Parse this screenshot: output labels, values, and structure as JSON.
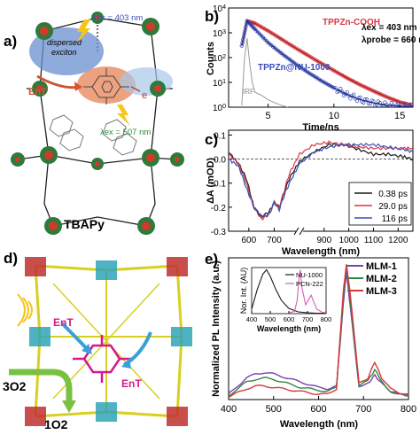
{
  "panels": {
    "a": {
      "label": "a)",
      "dispersed_exciton": [
        "dispersed",
        "exciton"
      ],
      "lambda_ex_403": "λex = 403 nm",
      "lambda_ex_507": "λex = 507 nm",
      "ent": "EnT",
      "electron": "e",
      "linker": "TBAPy"
    },
    "b": {
      "label": "b)",
      "ylabel": "Counts",
      "xlabel": "Time/ns",
      "series_labels": [
        "TPPZn-COOH",
        "TPPZn@NU-1000",
        "IRF"
      ],
      "lambda_ex": "λex = 403 nm",
      "lambda_probe": "λprobe = 660 nm",
      "yticks": [
        "10^0",
        "10^1",
        "10^2",
        "10^3",
        "10^4"
      ],
      "xticks": [
        "5",
        "10",
        "15"
      ],
      "colors": {
        "cooh": "#d9363e",
        "nu": "#3b4fb8",
        "irf": "#9a9a9a"
      }
    },
    "c": {
      "label": "c)",
      "ylabel": "ΔA (mOD)",
      "xlabel": "Wavelength (nm)",
      "yticks": [
        "0.1",
        "0.0",
        "-0.1",
        "-0.2",
        "-0.3"
      ],
      "xticks": [
        "600",
        "700",
        "900",
        "1000",
        "1100",
        "1200"
      ],
      "legend": [
        {
          "label": "0.38 ps",
          "color": "#1a1a1a"
        },
        {
          "label": "29.0 ps",
          "color": "#d9363e"
        },
        {
          "label": "116 ps",
          "color": "#3b4fb8"
        }
      ]
    },
    "d": {
      "label": "d)",
      "ent_1": "EnT",
      "ent_2": "EnT",
      "o2_triplet": "3O2",
      "o2_singlet": "1O2"
    },
    "e": {
      "label": "e)",
      "ylabel": "Normalized PL Intensity (a.u.)",
      "xlabel": "Wavelength (nm)",
      "xticks": [
        "400",
        "500",
        "600",
        "700",
        "800"
      ],
      "legend": [
        {
          "label": "MLM-1",
          "color": "#7b3fb0"
        },
        {
          "label": "MLM-2",
          "color": "#2e8b3a"
        },
        {
          "label": "MLM-3",
          "color": "#d9363e"
        }
      ],
      "inset": {
        "ylabel": "Nor. Int. (AU)",
        "xlabel": "Wavelength (nm)",
        "xticks": [
          "400",
          "500",
          "600",
          "700",
          "800"
        ],
        "legend": [
          {
            "label": "NU-1000",
            "color": "#1a1a1a"
          },
          {
            "label": "PCN-222",
            "color": "#d65fb8"
          }
        ]
      }
    }
  },
  "chart_data": [
    {
      "type": "line",
      "panel": "b",
      "title": "",
      "xlabel": "Time/ns",
      "ylabel": "Counts",
      "yscale": "log",
      "xlim": [
        2,
        16
      ],
      "ylim": [
        1,
        10000
      ],
      "series": [
        {
          "name": "TPPZn-COOH",
          "x": [
            3.0,
            3.4,
            4,
            5,
            6,
            7,
            8,
            9,
            10,
            11,
            12,
            13,
            14,
            15,
            16
          ],
          "y": [
            300,
            3000,
            2400,
            1200,
            560,
            260,
            125,
            60,
            30,
            15,
            8,
            4.5,
            2.6,
            1.6,
            1.2
          ]
        },
        {
          "name": "TPPZn@NU-1000",
          "x": [
            3.0,
            3.4,
            4,
            5,
            6,
            7,
            8,
            9,
            10,
            11,
            12,
            13,
            14,
            15,
            16
          ],
          "y": [
            300,
            3000,
            1400,
            400,
            150,
            60,
            26,
            12,
            6,
            3.2,
            2,
            1.5,
            1.2,
            1.1,
            1.05
          ]
        },
        {
          "name": "IRF",
          "x": [
            3.0,
            3.2,
            3.4,
            3.6,
            3.8,
            4.0,
            4.5,
            5.0,
            5.5,
            6.0,
            6.5
          ],
          "y": [
            1.2,
            80,
            600,
            60,
            10,
            4,
            3,
            2,
            1.5,
            1.2,
            1.0
          ]
        }
      ]
    },
    {
      "type": "line",
      "panel": "c",
      "title": "",
      "xlabel": "Wavelength (nm)",
      "ylabel": "ΔA (mOD)",
      "xlim": [
        520,
        1260
      ],
      "ylim": [
        -0.3,
        0.12
      ],
      "series": [
        {
          "name": "0.38 ps",
          "x": [
            520,
            560,
            590,
            620,
            650,
            680,
            700,
            720,
            740,
            760,
            800,
            860,
            920,
            980,
            1040,
            1100,
            1160,
            1220,
            1260
          ],
          "y": [
            0.03,
            -0.02,
            -0.08,
            -0.2,
            -0.24,
            -0.22,
            -0.18,
            -0.2,
            -0.14,
            -0.08,
            -0.01,
            0.03,
            0.06,
            0.06,
            0.04,
            0.02,
            0.02,
            0.01,
            0.0
          ]
        },
        {
          "name": "29.0 ps",
          "x": [
            520,
            560,
            590,
            620,
            650,
            680,
            700,
            720,
            740,
            760,
            800,
            860,
            920,
            980,
            1040,
            1100,
            1160,
            1220,
            1260
          ],
          "y": [
            0.02,
            -0.02,
            -0.1,
            -0.2,
            -0.25,
            -0.23,
            -0.18,
            -0.2,
            -0.13,
            -0.06,
            0.02,
            0.06,
            0.07,
            0.06,
            0.05,
            0.045,
            0.045,
            0.045,
            0.045
          ]
        },
        {
          "name": "116 ps",
          "x": [
            520,
            560,
            590,
            620,
            650,
            680,
            700,
            720,
            740,
            760,
            800,
            860,
            920,
            980,
            1040,
            1100,
            1160,
            1220,
            1260
          ],
          "y": [
            0.0,
            -0.03,
            -0.12,
            -0.2,
            -0.24,
            -0.23,
            -0.18,
            -0.21,
            -0.15,
            -0.1,
            -0.02,
            0.03,
            0.05,
            0.06,
            0.06,
            0.06,
            0.05,
            0.04,
            0.03
          ]
        }
      ]
    },
    {
      "type": "line",
      "panel": "e",
      "title": "",
      "xlabel": "Wavelength (nm)",
      "ylabel": "Normalized PL Intensity (a.u.)",
      "xlim": [
        400,
        800
      ],
      "ylim": [
        0,
        1.05
      ],
      "series": [
        {
          "name": "MLM-1",
          "x": [
            400,
            420,
            440,
            460,
            480,
            500,
            520,
            540,
            560,
            580,
            600,
            620,
            640,
            655,
            662,
            670,
            690,
            710,
            725,
            740,
            760,
            780,
            800
          ],
          "y": [
            0.04,
            0.1,
            0.16,
            0.19,
            0.2,
            0.19,
            0.17,
            0.15,
            0.13,
            0.11,
            0.09,
            0.08,
            0.1,
            0.7,
            0.95,
            0.7,
            0.1,
            0.12,
            0.18,
            0.12,
            0.06,
            0.04,
            0.03
          ]
        },
        {
          "name": "MLM-2",
          "x": [
            400,
            420,
            440,
            460,
            480,
            500,
            520,
            540,
            560,
            580,
            600,
            620,
            640,
            655,
            662,
            670,
            690,
            710,
            725,
            740,
            760,
            780,
            800
          ],
          "y": [
            0.03,
            0.08,
            0.13,
            0.15,
            0.16,
            0.15,
            0.13,
            0.11,
            0.09,
            0.08,
            0.07,
            0.06,
            0.09,
            0.75,
            1.0,
            0.75,
            0.1,
            0.14,
            0.22,
            0.14,
            0.06,
            0.04,
            0.03
          ]
        },
        {
          "name": "MLM-3",
          "x": [
            400,
            420,
            440,
            460,
            480,
            500,
            520,
            540,
            560,
            580,
            600,
            620,
            640,
            655,
            662,
            670,
            690,
            710,
            725,
            740,
            760,
            780,
            800
          ],
          "y": [
            0.02,
            0.05,
            0.08,
            0.1,
            0.1,
            0.09,
            0.08,
            0.07,
            0.06,
            0.05,
            0.04,
            0.04,
            0.08,
            0.8,
            1.0,
            0.8,
            0.12,
            0.16,
            0.28,
            0.16,
            0.08,
            0.05,
            0.04
          ]
        }
      ]
    },
    {
      "type": "line",
      "panel": "e-inset",
      "title": "",
      "xlabel": "Wavelength (nm)",
      "ylabel": "Nor. Int. (AU)",
      "xlim": [
        400,
        800
      ],
      "ylim": [
        0,
        1.05
      ],
      "series": [
        {
          "name": "NU-1000",
          "x": [
            400,
            430,
            460,
            480,
            500,
            530,
            560,
            600,
            650,
            700,
            750,
            800
          ],
          "y": [
            0.1,
            0.55,
            0.9,
            1.0,
            0.85,
            0.55,
            0.3,
            0.12,
            0.04,
            0.02,
            0.01,
            0.01
          ]
        },
        {
          "name": "PCN-222",
          "x": [
            600,
            630,
            645,
            655,
            662,
            670,
            690,
            710,
            720,
            730,
            750,
            780,
            800
          ],
          "y": [
            0.02,
            0.05,
            0.3,
            0.85,
            1.0,
            0.6,
            0.2,
            0.35,
            0.42,
            0.3,
            0.1,
            0.03,
            0.02
          ]
        }
      ]
    }
  ]
}
